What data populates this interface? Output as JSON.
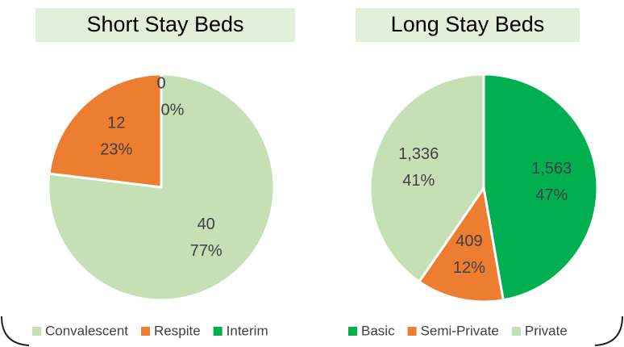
{
  "chart_data": [
    {
      "type": "pie",
      "title": "Short Stay Beds",
      "categories": [
        "Convalescent",
        "Respite",
        "Interim"
      ],
      "values": [
        40,
        12,
        0
      ],
      "percent_labels": [
        "77%",
        "23%",
        "0%"
      ],
      "colors": [
        "#c5e0b4",
        "#ed7d31",
        "#00b050"
      ]
    },
    {
      "type": "pie",
      "title": "Long Stay Beds",
      "categories": [
        "Basic",
        "Semi-Private",
        "Private"
      ],
      "values": [
        1563,
        409,
        1336
      ],
      "value_labels": [
        "1,563",
        "409",
        "1,336"
      ],
      "percent_labels": [
        "47%",
        "12%",
        "41%"
      ],
      "colors": [
        "#00b050",
        "#ed7d31",
        "#c5e0b4"
      ]
    }
  ]
}
